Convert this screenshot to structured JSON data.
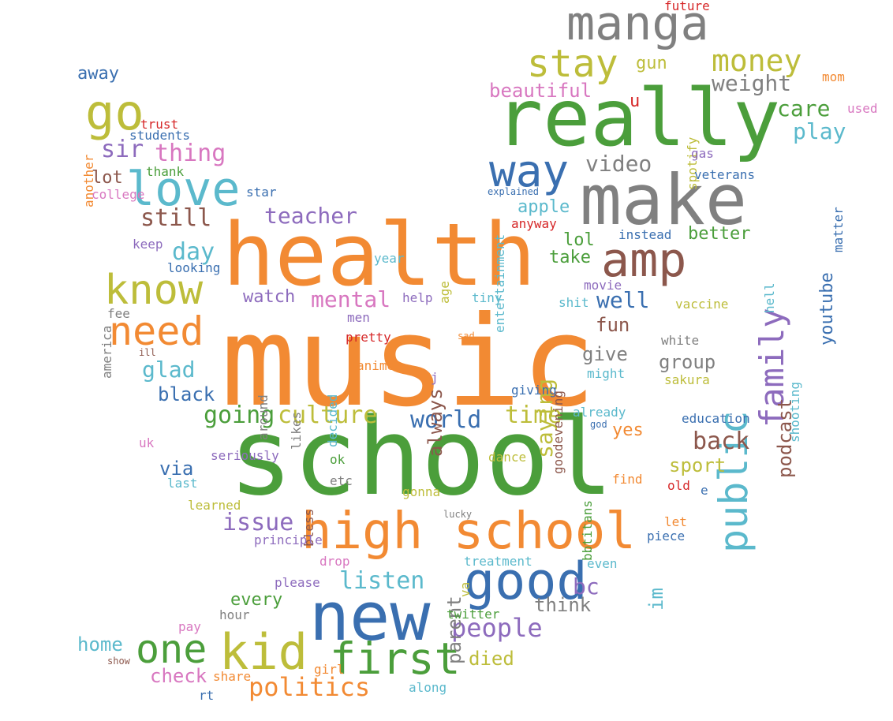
{
  "colors": {
    "orange": "#f28a33",
    "green": "#4b9e3b",
    "blue": "#3a6fb0",
    "gray": "#808080",
    "olive": "#bdbd3a",
    "purple": "#8d6bbd",
    "teal": "#5bb9cc",
    "pink": "#d877c0",
    "brown": "#8c574c",
    "red": "#d62728"
  },
  "words": [
    {
      "text": "music",
      "color": "orange"
    },
    {
      "text": "school",
      "color": "green"
    },
    {
      "text": "health",
      "color": "orange"
    },
    {
      "text": "really",
      "color": "green"
    },
    {
      "text": "make",
      "color": "gray"
    },
    {
      "text": "new",
      "color": "blue"
    },
    {
      "text": "high school",
      "color": "orange"
    },
    {
      "text": "good",
      "color": "blue"
    },
    {
      "text": "manga",
      "color": "gray"
    },
    {
      "text": "kid",
      "color": "olive"
    },
    {
      "text": "one",
      "color": "green"
    },
    {
      "text": "first",
      "color": "green"
    },
    {
      "text": "amp",
      "color": "brown"
    },
    {
      "text": "family",
      "color": "purple"
    },
    {
      "text": "public",
      "color": "teal"
    },
    {
      "text": "love",
      "color": "teal"
    },
    {
      "text": "know",
      "color": "olive"
    },
    {
      "text": "go",
      "color": "olive"
    },
    {
      "text": "stay",
      "color": "olive"
    },
    {
      "text": "money",
      "color": "olive"
    },
    {
      "text": "way",
      "color": "blue"
    },
    {
      "text": "need",
      "color": "orange"
    },
    {
      "text": "politics",
      "color": "orange"
    },
    {
      "text": "people",
      "color": "purple"
    },
    {
      "text": "culture",
      "color": "olive"
    },
    {
      "text": "going",
      "color": "green"
    },
    {
      "text": "time",
      "color": "olive"
    },
    {
      "text": "world",
      "color": "blue"
    },
    {
      "text": "back",
      "color": "brown"
    },
    {
      "text": "listen",
      "color": "teal"
    },
    {
      "text": "issue",
      "color": "purple"
    },
    {
      "text": "still",
      "color": "brown"
    },
    {
      "text": "thing",
      "color": "pink"
    },
    {
      "text": "teacher",
      "color": "purple"
    },
    {
      "text": "mental",
      "color": "pink"
    },
    {
      "text": "glad",
      "color": "teal"
    },
    {
      "text": "black",
      "color": "blue"
    },
    {
      "text": "day",
      "color": "teal"
    },
    {
      "text": "sir",
      "color": "purple"
    },
    {
      "text": "weight",
      "color": "gray"
    },
    {
      "text": "care",
      "color": "green"
    },
    {
      "text": "play",
      "color": "teal"
    },
    {
      "text": "video",
      "color": "gray"
    },
    {
      "text": "beautiful",
      "color": "pink"
    },
    {
      "text": "well",
      "color": "blue"
    },
    {
      "text": "saying",
      "color": "olive"
    },
    {
      "text": "always",
      "color": "brown"
    },
    {
      "text": "parent",
      "color": "gray"
    },
    {
      "text": "podcast",
      "color": "brown"
    },
    {
      "text": "youtube",
      "color": "blue"
    },
    {
      "text": "sport",
      "color": "olive"
    },
    {
      "text": "group",
      "color": "gray"
    },
    {
      "text": "give",
      "color": "gray"
    },
    {
      "text": "fun",
      "color": "brown"
    },
    {
      "text": "bc",
      "color": "purple"
    },
    {
      "text": "im",
      "color": "teal"
    },
    {
      "text": "think",
      "color": "gray"
    },
    {
      "text": "every",
      "color": "green"
    },
    {
      "text": "died",
      "color": "olive"
    },
    {
      "text": "check",
      "color": "pink"
    },
    {
      "text": "home",
      "color": "teal"
    },
    {
      "text": "yes",
      "color": "orange"
    },
    {
      "text": "via",
      "color": "blue"
    },
    {
      "text": "watch",
      "color": "purple"
    },
    {
      "text": "better",
      "color": "green"
    },
    {
      "text": "take",
      "color": "green"
    },
    {
      "text": "lol",
      "color": "green"
    },
    {
      "text": "apple",
      "color": "teal"
    },
    {
      "text": "gun",
      "color": "olive"
    },
    {
      "text": "away",
      "color": "blue"
    },
    {
      "text": "lot",
      "color": "brown"
    },
    {
      "text": "u",
      "color": "red"
    },
    {
      "text": "mom",
      "color": "orange"
    },
    {
      "text": "used",
      "color": "pink"
    },
    {
      "text": "future",
      "color": "red"
    },
    {
      "text": "spotify",
      "color": "olive"
    },
    {
      "text": "gas",
      "color": "purple"
    },
    {
      "text": "veterans",
      "color": "blue"
    },
    {
      "text": "matter",
      "color": "blue"
    },
    {
      "text": "entertainment",
      "color": "teal"
    },
    {
      "text": "explained",
      "color": "blue"
    },
    {
      "text": "anyway",
      "color": "red"
    },
    {
      "text": "instead",
      "color": "blue"
    },
    {
      "text": "hell",
      "color": "teal"
    },
    {
      "text": "movie",
      "color": "purple"
    },
    {
      "text": "shit",
      "color": "teal"
    },
    {
      "text": "vaccine",
      "color": "olive"
    },
    {
      "text": "shooting",
      "color": "teal"
    },
    {
      "text": "white",
      "color": "gray"
    },
    {
      "text": "might",
      "color": "teal"
    },
    {
      "text": "sakura",
      "color": "olive"
    },
    {
      "text": "education",
      "color": "blue"
    },
    {
      "text": "already",
      "color": "teal"
    },
    {
      "text": "god",
      "color": "blue"
    },
    {
      "text": "find",
      "color": "orange"
    },
    {
      "text": "old",
      "color": "red"
    },
    {
      "text": "e",
      "color": "blue"
    },
    {
      "text": "let",
      "color": "orange"
    },
    {
      "text": "piece",
      "color": "blue"
    },
    {
      "text": "even",
      "color": "teal"
    },
    {
      "text": "twitter",
      "color": "green"
    },
    {
      "text": "treatment",
      "color": "teal"
    },
    {
      "text": "please",
      "color": "purple"
    },
    {
      "text": "help",
      "color": "purple"
    },
    {
      "text": "tiny",
      "color": "teal"
    },
    {
      "text": "age",
      "color": "olive"
    },
    {
      "text": "year",
      "color": "teal"
    },
    {
      "text": "men",
      "color": "purple"
    },
    {
      "text": "pretty",
      "color": "red"
    },
    {
      "text": "sad",
      "color": "orange"
    },
    {
      "text": "anime",
      "color": "orange"
    },
    {
      "text": "j",
      "color": "purple"
    },
    {
      "text": "giving",
      "color": "blue"
    },
    {
      "text": "goodevening",
      "color": "brown"
    },
    {
      "text": "decided",
      "color": "teal"
    },
    {
      "text": "likes",
      "color": "gray"
    },
    {
      "text": "around",
      "color": "gray"
    },
    {
      "text": "ok",
      "color": "green"
    },
    {
      "text": "dance",
      "color": "olive"
    },
    {
      "text": "etc",
      "color": "gray"
    },
    {
      "text": "gonna",
      "color": "olive"
    },
    {
      "text": "bbtitans",
      "color": "green"
    },
    {
      "text": "bless",
      "color": "brown"
    },
    {
      "text": "lucky",
      "color": "gray"
    },
    {
      "text": "va",
      "color": "olive"
    },
    {
      "text": "drop",
      "color": "pink"
    },
    {
      "text": "principle",
      "color": "purple"
    },
    {
      "text": "uk",
      "color": "pink"
    },
    {
      "text": "seriously",
      "color": "purple"
    },
    {
      "text": "last",
      "color": "teal"
    },
    {
      "text": "learned",
      "color": "olive"
    },
    {
      "text": "hour",
      "color": "gray"
    },
    {
      "text": "pay",
      "color": "pink"
    },
    {
      "text": "show",
      "color": "brown"
    },
    {
      "text": "share",
      "color": "orange"
    },
    {
      "text": "rt",
      "color": "blue"
    },
    {
      "text": "girl",
      "color": "orange"
    },
    {
      "text": "along",
      "color": "teal"
    },
    {
      "text": "trust",
      "color": "red"
    },
    {
      "text": "students",
      "color": "blue"
    },
    {
      "text": "another",
      "color": "orange"
    },
    {
      "text": "thank",
      "color": "green"
    },
    {
      "text": "college",
      "color": "pink"
    },
    {
      "text": "star",
      "color": "blue"
    },
    {
      "text": "keep",
      "color": "purple"
    },
    {
      "text": "looking",
      "color": "blue"
    },
    {
      "text": "america",
      "color": "gray"
    },
    {
      "text": "fee",
      "color": "gray"
    },
    {
      "text": "ill",
      "color": "brown"
    }
  ]
}
